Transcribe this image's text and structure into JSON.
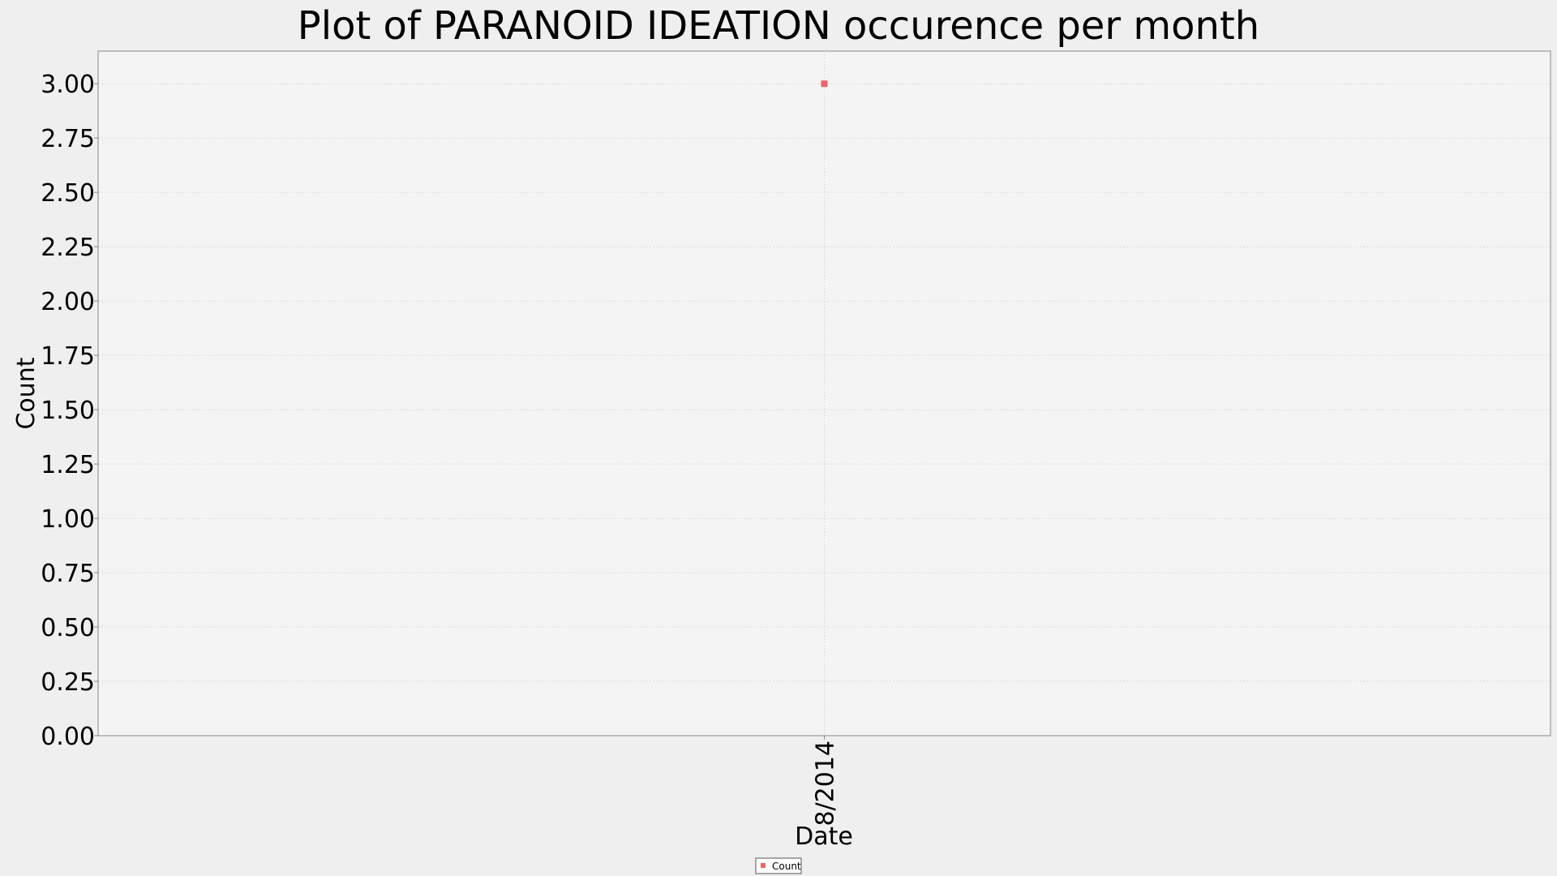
{
  "chart_data": {
    "type": "scatter",
    "title": "Plot of PARANOID IDEATION occurence per month",
    "xlabel": "Date",
    "ylabel": "Count",
    "x_categories": [
      "8/2014"
    ],
    "series": [
      {
        "name": "Count",
        "color": "#e8666b",
        "points": [
          {
            "x": "8/2014",
            "y": 3
          }
        ]
      }
    ],
    "ylim": [
      0,
      3.15
    ],
    "y_ticks": [
      "0.00",
      "0.25",
      "0.50",
      "0.75",
      "1.00",
      "1.25",
      "1.50",
      "1.75",
      "2.00",
      "2.25",
      "2.50",
      "2.75",
      "3.00"
    ],
    "grid": true,
    "legend_position": "bottom-center"
  },
  "colors": {
    "page_background": "#efefef",
    "plot_background": "#f4f4f4",
    "grid": "#dcdcdc",
    "axis": "#888888",
    "marker": "#e8666b"
  }
}
